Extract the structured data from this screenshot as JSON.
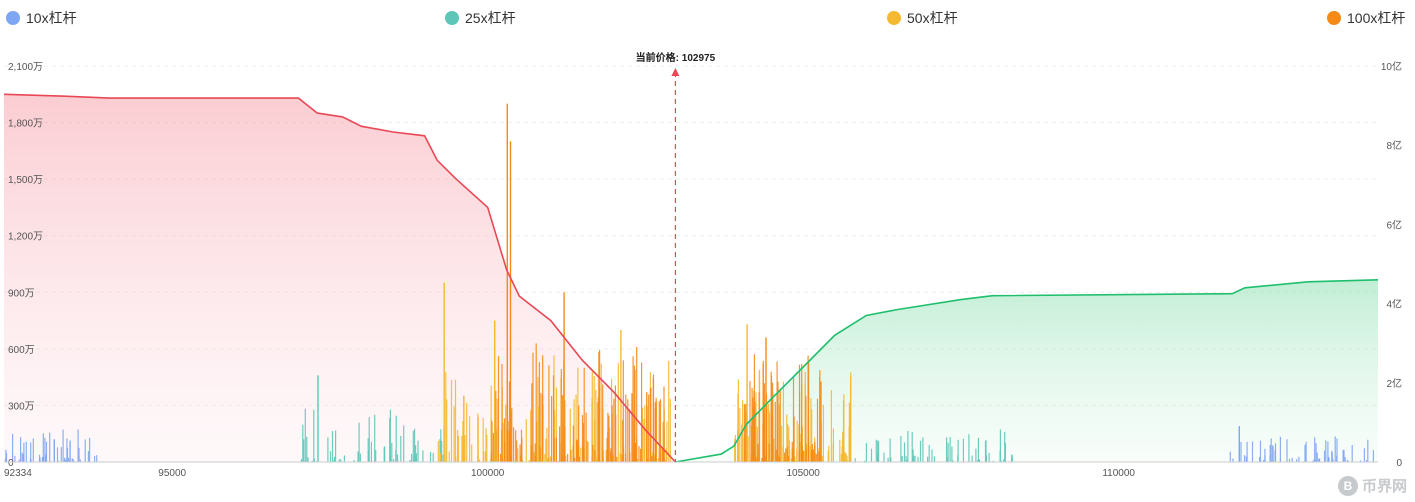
{
  "legend": [
    {
      "label": "10x杠杆",
      "color": "#7ea6f2"
    },
    {
      "label": "25x杠杆",
      "color": "#5ec6b8"
    },
    {
      "label": "50x杠杆",
      "color": "#f5b931"
    },
    {
      "label": "100x杠杆",
      "color": "#f58a17"
    }
  ],
  "chart_data": {
    "type": "bar",
    "price_label": "当前价格: 102975",
    "current_price": 102975,
    "xlim": [
      92334,
      114110
    ],
    "x_ticks": [
      {
        "value": 92334,
        "label": "92334"
      },
      {
        "value": 95000,
        "label": "95000"
      },
      {
        "value": 100000,
        "label": "100000"
      },
      {
        "value": 105000,
        "label": "105000"
      },
      {
        "value": 110000,
        "label": "110000"
      }
    ],
    "y_left": {
      "range": [
        0,
        21000000
      ],
      "ticks": [
        "0",
        "300万",
        "600万",
        "900万",
        "1,200万",
        "1,500万",
        "1,800万",
        "2,100万"
      ]
    },
    "y_right": {
      "range": [
        0,
        1000000000
      ],
      "ticks": [
        "0",
        "2亿",
        "4亿",
        "6亿",
        "8亿",
        "10亿"
      ]
    },
    "colors": {
      "long_line": "#e84855",
      "short_line": "#1fbf6d",
      "price_line": "#e84855"
    },
    "series": [
      {
        "name": "10x杠杆",
        "color": "#7ea6f2",
        "ranges": [
          [
            92334,
            93800,
            60,
            0.15
          ],
          [
            111700,
            114100,
            70,
            0.12
          ]
        ]
      },
      {
        "name": "25x杠杆",
        "color": "#5ec6b8",
        "ranges": [
          [
            97000,
            99300,
            70,
            0.25
          ],
          [
            105800,
            108400,
            80,
            0.15
          ]
        ]
      },
      {
        "name": "50x杠杆",
        "color": "#f5b931",
        "ranges": [
          [
            99200,
            102900,
            170,
            0.5
          ],
          [
            103900,
            105800,
            120,
            0.45
          ]
        ]
      },
      {
        "name": "100x杠杆",
        "color": "#f58a17",
        "ranges": [
          [
            100000,
            102800,
            160,
            0.55
          ],
          [
            104000,
            105300,
            100,
            0.5
          ]
        ]
      }
    ],
    "peaks": [
      {
        "x": 97300,
        "y": 4600000,
        "series": "25x杠杆"
      },
      {
        "x": 99300,
        "y": 9500000,
        "series": "50x杠杆"
      },
      {
        "x": 100100,
        "y": 7500000,
        "series": "50x杠杆"
      },
      {
        "x": 100300,
        "y": 19000000,
        "series": "100x杠杆"
      },
      {
        "x": 100350,
        "y": 17000000,
        "series": "100x杠杆"
      },
      {
        "x": 101200,
        "y": 9000000,
        "series": "100x杠杆"
      },
      {
        "x": 102100,
        "y": 7000000,
        "series": "50x杠杆"
      },
      {
        "x": 104100,
        "y": 7300000,
        "series": "50x杠杆"
      },
      {
        "x": 104400,
        "y": 6600000,
        "series": "100x杠杆"
      },
      {
        "x": 111900,
        "y": 1900000,
        "series": "10x杠杆"
      }
    ],
    "cumulative_long": [
      [
        92334,
        19500000
      ],
      [
        93300,
        19400000
      ],
      [
        94000,
        19300000
      ],
      [
        97000,
        19300000
      ],
      [
        97300,
        18500000
      ],
      [
        97700,
        18300000
      ],
      [
        98000,
        17800000
      ],
      [
        98500,
        17500000
      ],
      [
        99000,
        17300000
      ],
      [
        99200,
        16000000
      ],
      [
        99500,
        15000000
      ],
      [
        100000,
        13500000
      ],
      [
        100300,
        10200000
      ],
      [
        100500,
        8800000
      ],
      [
        101000,
        7500000
      ],
      [
        101500,
        5400000
      ],
      [
        102000,
        3700000
      ],
      [
        102500,
        1700000
      ],
      [
        102975,
        0
      ]
    ],
    "cumulative_short": [
      [
        102975,
        0
      ],
      [
        103700,
        20000000
      ],
      [
        103900,
        40000000
      ],
      [
        104100,
        95000000
      ],
      [
        104500,
        160000000
      ],
      [
        105000,
        240000000
      ],
      [
        105500,
        320000000
      ],
      [
        106000,
        370000000
      ],
      [
        106500,
        385000000
      ],
      [
        107500,
        410000000
      ],
      [
        108000,
        420000000
      ],
      [
        111800,
        425000000
      ],
      [
        112000,
        440000000
      ],
      [
        113000,
        455000000
      ],
      [
        114110,
        460000000
      ]
    ]
  },
  "watermark": {
    "symbol": "B",
    "text": "币界网"
  }
}
